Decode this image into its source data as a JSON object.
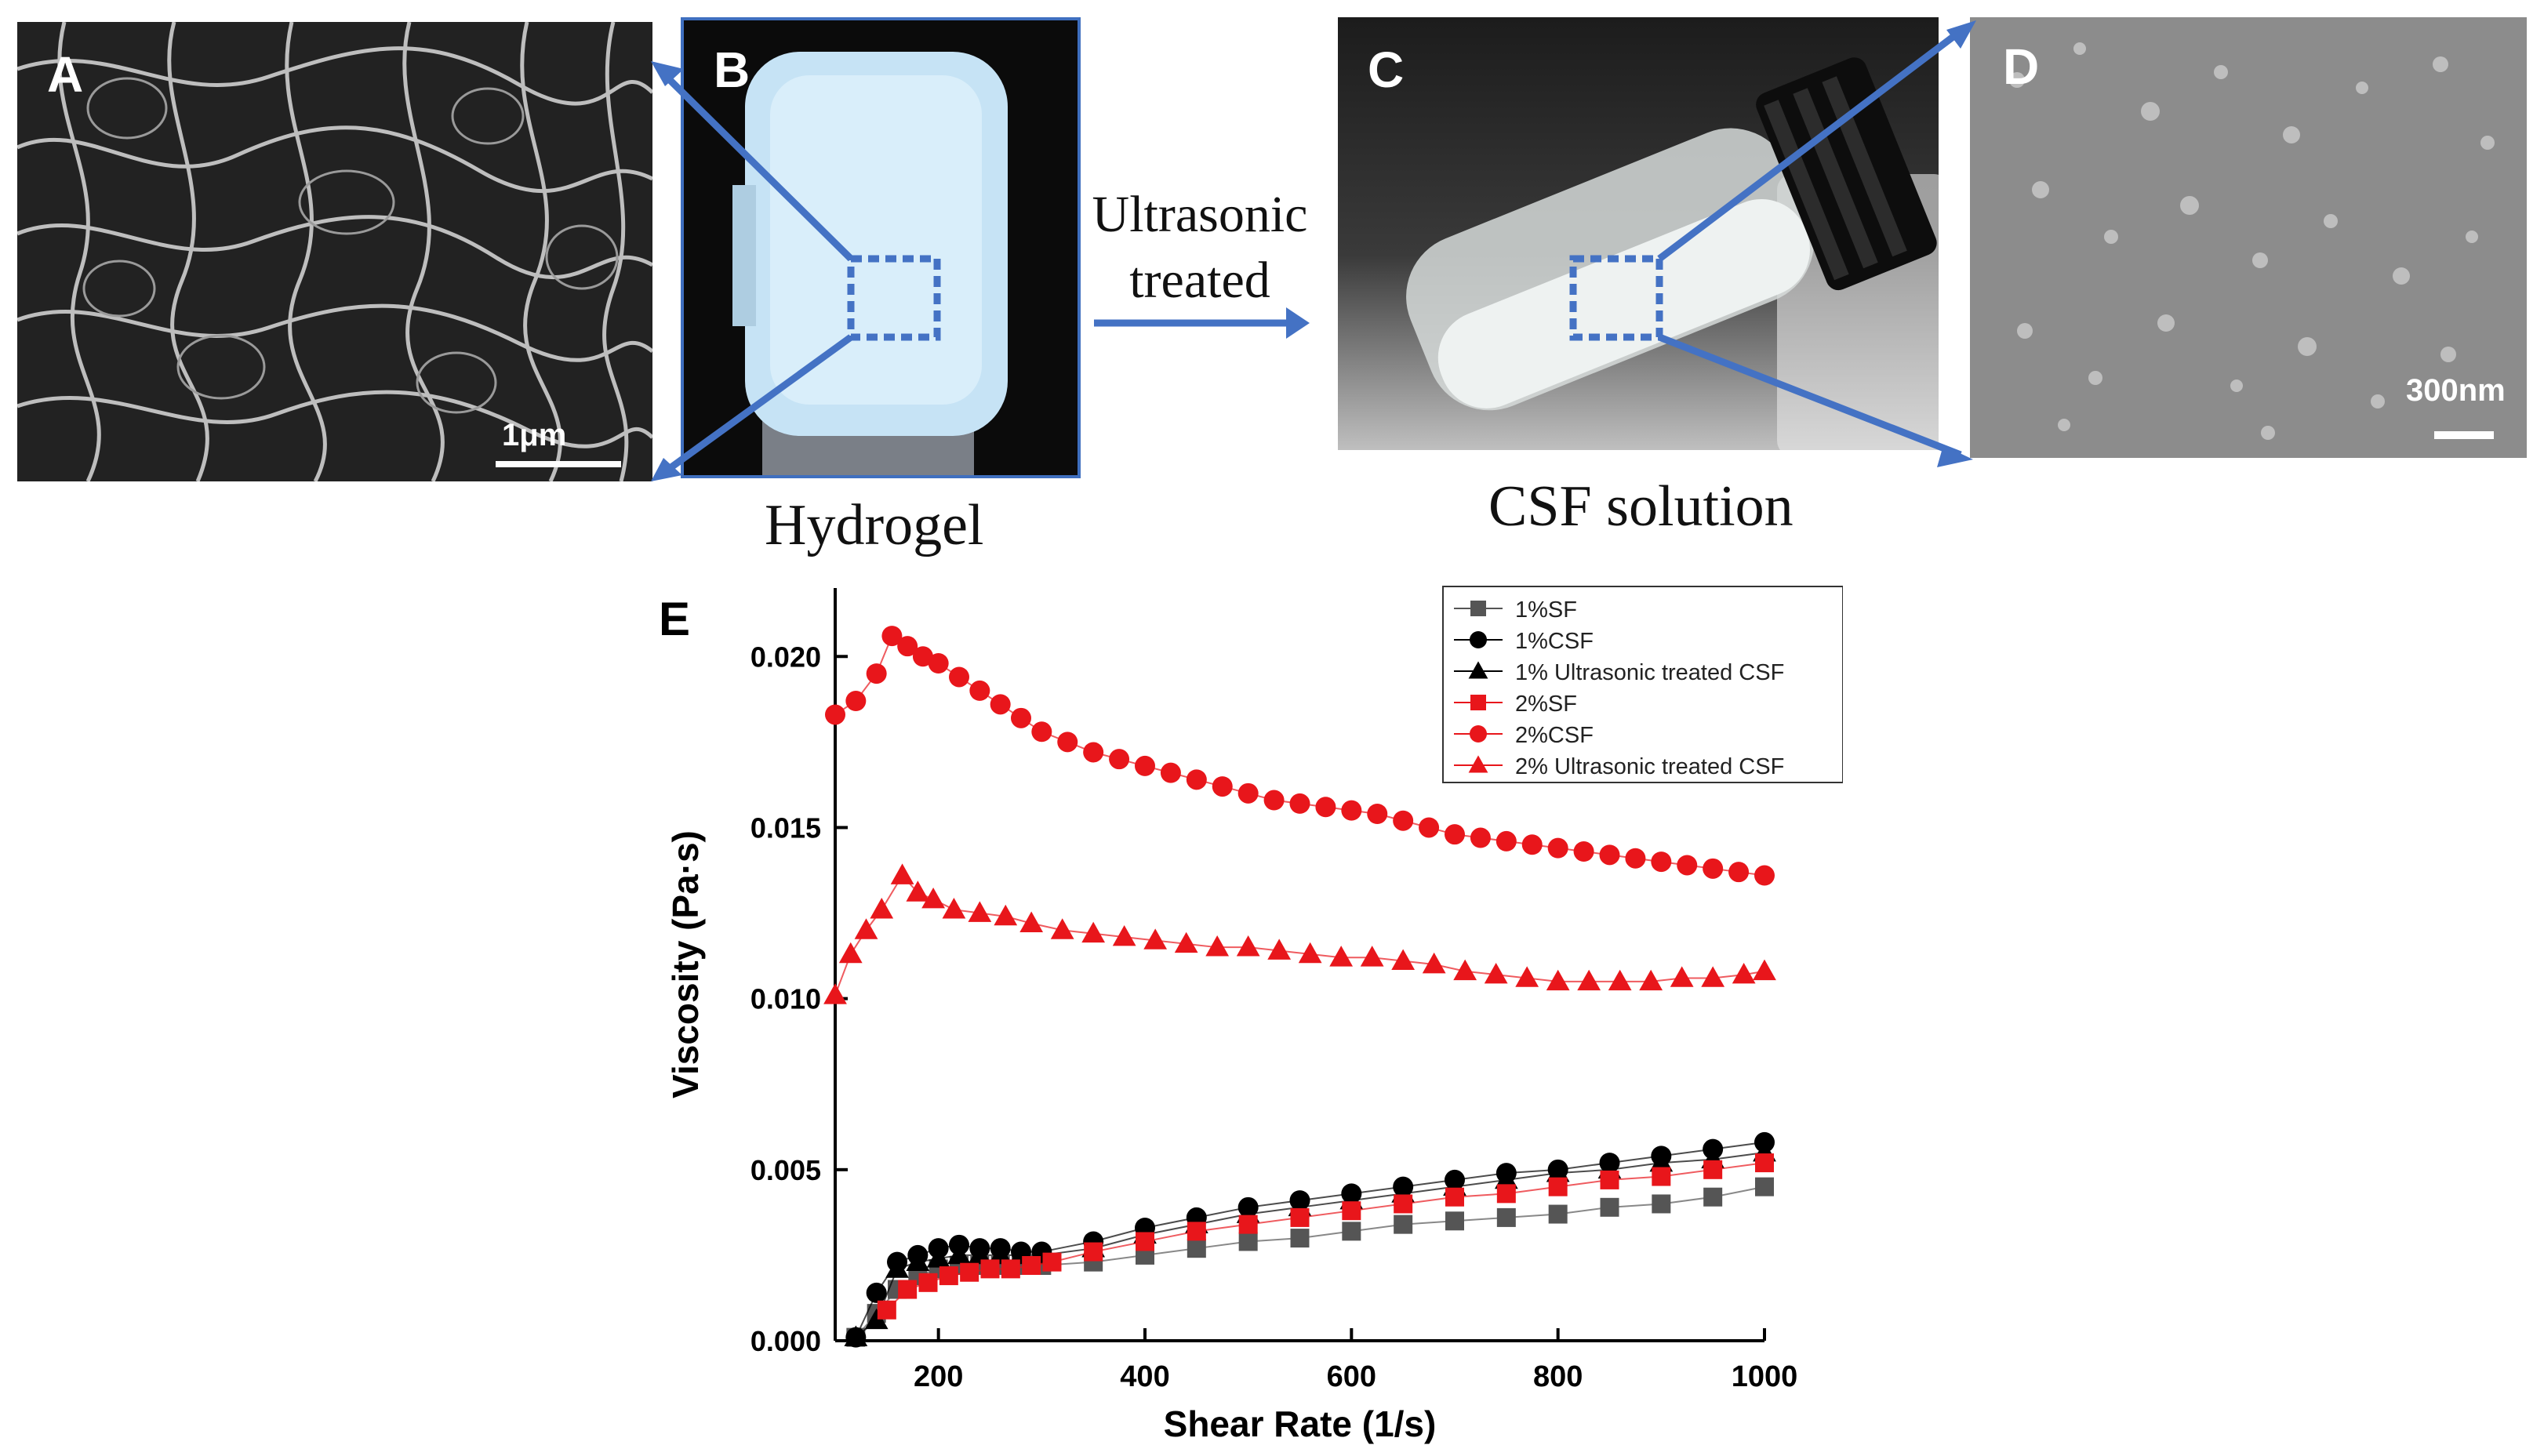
{
  "panels": {
    "a": {
      "label": "A",
      "scale": "1μm"
    },
    "b": {
      "label": "B",
      "caption": "Hydrogel"
    },
    "c": {
      "label": "C",
      "caption": "CSF solution"
    },
    "d": {
      "label": "D",
      "scale": "300nm"
    },
    "arrow_text": "Ultrasonic treated"
  },
  "chart_data": {
    "type": "scatter",
    "panel_label": "E",
    "xlabel": "Shear Rate (1/s)",
    "ylabel": "Viscosity (Pa·s)",
    "xlim": [
      100,
      1000
    ],
    "ylim": [
      0,
      0.022
    ],
    "x_ticks": [
      "200",
      "400",
      "600",
      "800",
      "1000"
    ],
    "y_ticks": [
      "0.000",
      "0.005",
      "0.010",
      "0.015",
      "0.020"
    ],
    "legend_position": "top-right",
    "series": [
      {
        "name": "1%SF",
        "marker": "square",
        "color": "#555555",
        "x": [
          120,
          140,
          160,
          180,
          200,
          220,
          240,
          260,
          280,
          300,
          350,
          400,
          450,
          500,
          550,
          600,
          650,
          700,
          750,
          800,
          850,
          900,
          950,
          1000
        ],
        "y": [
          0.0001,
          0.0008,
          0.0015,
          0.0019,
          0.0021,
          0.0022,
          0.0022,
          0.0022,
          0.0022,
          0.0022,
          0.0023,
          0.0025,
          0.0027,
          0.0029,
          0.003,
          0.0032,
          0.0034,
          0.0035,
          0.0036,
          0.0037,
          0.0039,
          0.004,
          0.0042,
          0.0045
        ]
      },
      {
        "name": "1%CSF",
        "marker": "circle",
        "color": "#000000",
        "x": [
          120,
          140,
          160,
          180,
          200,
          220,
          240,
          260,
          280,
          300,
          350,
          400,
          450,
          500,
          550,
          600,
          650,
          700,
          750,
          800,
          850,
          900,
          950,
          1000
        ],
        "y": [
          0.0001,
          0.0014,
          0.0023,
          0.0025,
          0.0027,
          0.0028,
          0.0027,
          0.0027,
          0.0026,
          0.0026,
          0.0029,
          0.0033,
          0.0036,
          0.0039,
          0.0041,
          0.0043,
          0.0045,
          0.0047,
          0.0049,
          0.005,
          0.0052,
          0.0054,
          0.0056,
          0.0058
        ]
      },
      {
        "name": "1% Ultrasonic treated CSF",
        "marker": "triangle",
        "color": "#000000",
        "x": [
          120,
          140,
          160,
          180,
          200,
          220,
          240,
          260,
          280,
          300,
          350,
          400,
          450,
          500,
          550,
          600,
          650,
          700,
          750,
          800,
          850,
          900,
          950,
          1000
        ],
        "y": [
          0.0001,
          0.0006,
          0.0021,
          0.0023,
          0.0024,
          0.0025,
          0.0025,
          0.0025,
          0.0025,
          0.0025,
          0.0027,
          0.0031,
          0.0034,
          0.0037,
          0.0039,
          0.0041,
          0.0043,
          0.0045,
          0.0047,
          0.0049,
          0.005,
          0.0052,
          0.0053,
          0.0055
        ]
      },
      {
        "name": "2%SF",
        "marker": "square",
        "color": "#e8161b",
        "x": [
          150,
          170,
          190,
          210,
          230,
          250,
          270,
          290,
          310,
          350,
          400,
          450,
          500,
          550,
          600,
          650,
          700,
          750,
          800,
          850,
          900,
          950,
          1000
        ],
        "y": [
          0.0009,
          0.0015,
          0.0017,
          0.0019,
          0.002,
          0.0021,
          0.0021,
          0.0022,
          0.0023,
          0.0026,
          0.0029,
          0.0032,
          0.0034,
          0.0036,
          0.0038,
          0.004,
          0.0042,
          0.0043,
          0.0045,
          0.0047,
          0.0048,
          0.005,
          0.0052
        ]
      },
      {
        "name": "2%CSF",
        "marker": "circle",
        "color": "#e8161b",
        "x": [
          100,
          120,
          140,
          155,
          170,
          185,
          200,
          220,
          240,
          260,
          280,
          300,
          325,
          350,
          375,
          400,
          425,
          450,
          475,
          500,
          525,
          550,
          575,
          600,
          625,
          650,
          675,
          700,
          725,
          750,
          775,
          800,
          825,
          850,
          875,
          900,
          925,
          950,
          975,
          1000
        ],
        "y": [
          0.0183,
          0.0187,
          0.0195,
          0.0206,
          0.0203,
          0.02,
          0.0198,
          0.0194,
          0.019,
          0.0186,
          0.0182,
          0.0178,
          0.0175,
          0.0172,
          0.017,
          0.0168,
          0.0166,
          0.0164,
          0.0162,
          0.016,
          0.0158,
          0.0157,
          0.0156,
          0.0155,
          0.0154,
          0.0152,
          0.015,
          0.0148,
          0.0147,
          0.0146,
          0.0145,
          0.0144,
          0.0143,
          0.0142,
          0.0141,
          0.014,
          0.0139,
          0.0138,
          0.0137,
          0.0136
        ]
      },
      {
        "name": "2% Ultrasonic treated  CSF",
        "marker": "triangle",
        "color": "#e8161b",
        "x": [
          100,
          115,
          130,
          145,
          165,
          180,
          195,
          215,
          240,
          265,
          290,
          320,
          350,
          380,
          410,
          440,
          470,
          500,
          530,
          560,
          590,
          620,
          650,
          680,
          710,
          740,
          770,
          800,
          830,
          860,
          890,
          920,
          950,
          980,
          1000
        ],
        "y": [
          0.0101,
          0.0113,
          0.012,
          0.0126,
          0.0136,
          0.0131,
          0.0129,
          0.0126,
          0.0125,
          0.0124,
          0.0122,
          0.012,
          0.0119,
          0.0118,
          0.0117,
          0.0116,
          0.0115,
          0.0115,
          0.0114,
          0.0113,
          0.0112,
          0.0112,
          0.0111,
          0.011,
          0.0108,
          0.0107,
          0.0106,
          0.0105,
          0.0105,
          0.0105,
          0.0105,
          0.0106,
          0.0106,
          0.0107,
          0.0108
        ]
      }
    ]
  }
}
